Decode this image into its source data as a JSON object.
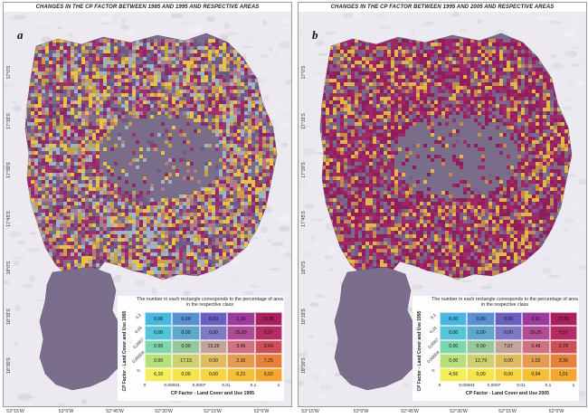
{
  "panels": [
    {
      "title": "CHANGES IN THE CP FACTOR BETWEEN 1985 AND 1995 AND RESPECTIVE AREAS",
      "letter": "a",
      "matrix": {
        "caption": "The number in each rectangle corresponds to the percentage of area in the respective class",
        "y_title": "CP Factor - Land Cover and Use 1985",
        "x_title": "CP Factor - Land Cover and Use 1995",
        "cells": [
          [
            "0,00",
            "0,00",
            "0,00",
            "1,16",
            "13,39"
          ],
          [
            "0,00",
            "0,00",
            "0,00",
            "25,83",
            "3,37"
          ],
          [
            "0,00",
            "0,00",
            "13,29",
            "3,46",
            "9,64"
          ],
          [
            "0,00",
            "17,15",
            "0,00",
            "2,30",
            "7,25"
          ],
          [
            "6,10",
            "0,00",
            "0,00",
            "0,21",
            "0,02"
          ]
        ]
      }
    },
    {
      "title": "CHANGES IN THE CP FACTOR BETWEEN 1995 AND 2005 AND RESPECTIVE AREAS",
      "letter": "b",
      "matrix": {
        "caption": "The number in each rectangle corresponds to the percentage of area in the respective class",
        "y_title": "CP Factor - Land Cover and Use 1995",
        "x_title": "CP Factor - Land Cover and Use 2005",
        "cells": [
          [
            "0,00",
            "0,00",
            "0,00",
            "0,91",
            "37,55"
          ],
          [
            "0,00",
            "0,00",
            "0,00",
            "29,35",
            "3,57"
          ],
          [
            "0,00",
            "0,00",
            "7,07",
            "0,48",
            "2,78"
          ],
          [
            "0,00",
            "12,79",
            "0,00",
            "1,02",
            "3,36"
          ],
          [
            "4,56",
            "0,00",
            "0,00",
            "0,94",
            "1,01"
          ]
        ]
      }
    }
  ],
  "x_ticks": [
    "0",
    "0,00004",
    "0,0007",
    "0,01",
    "0,1",
    "1"
  ],
  "y_ticks": [
    "0,1",
    "0,01",
    "0,0007",
    "0,00004",
    "0"
  ],
  "lat_labels": [
    "17°0'S",
    "17°15'S",
    "17°30'S",
    "17°45'S",
    "18°0'S",
    "18°15'S",
    "18°30'S"
  ],
  "lon_labels": [
    "53°15'W",
    "53°0'W",
    "52°45'W",
    "52°30'W",
    "52°15'W",
    "52°0'W"
  ],
  "colors": {
    "classes": [
      "#5e3c99",
      "#7b5fb2",
      "#9ec8d8",
      "#d8a640",
      "#f0d042"
    ],
    "cell_rows": [
      [
        "#48b8e0",
        "#5a8fd2",
        "#6a5fbf",
        "#9b3c9c",
        "#a8205f"
      ],
      [
        "#56c3d8",
        "#5fa7cc",
        "#7f7ac4",
        "#b04b97",
        "#b62a66"
      ],
      [
        "#7ed6b0",
        "#96c8a0",
        "#c2a49a",
        "#cf7382",
        "#cc5059"
      ],
      [
        "#b8e07a",
        "#cfd070",
        "#dfbc62",
        "#e69c50",
        "#e8803e"
      ],
      [
        "#f2ef5a",
        "#f5e450",
        "#f6d446",
        "#f4c03c",
        "#f2a832"
      ]
    ]
  }
}
